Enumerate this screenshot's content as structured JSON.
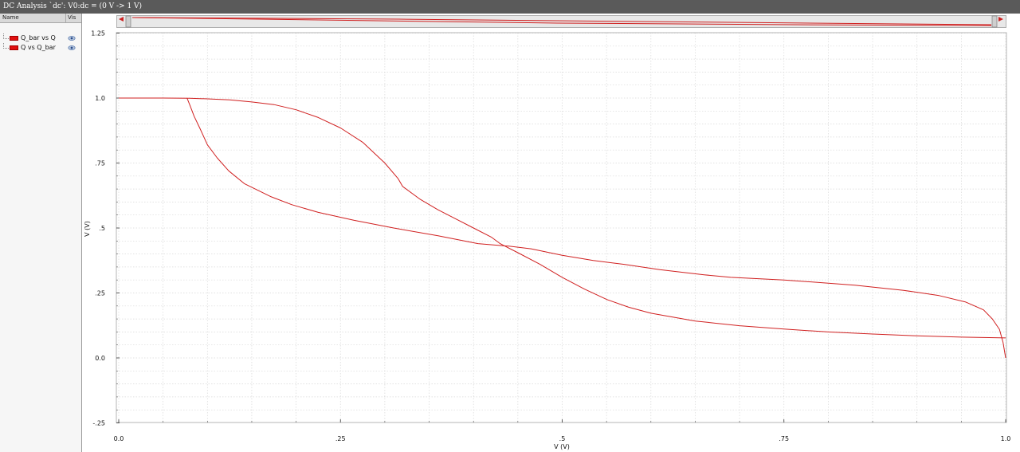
{
  "window": {
    "title": "DC Analysis `dc': V0:dc = (0 V -> 1 V)"
  },
  "legend": {
    "header_name": "Name",
    "header_vis": "Vis",
    "items": [
      {
        "label": "Q_bar vs Q",
        "color": "#e01010",
        "visible_icon": "eye-icon"
      },
      {
        "label": "Q vs Q_bar",
        "color": "#e01010",
        "visible_icon": "eye-icon"
      }
    ]
  },
  "chart_data": {
    "type": "line",
    "xlabel": "V (V)",
    "ylabel": "V (V)",
    "xlim": [
      0,
      1
    ],
    "ylim": [
      -0.25,
      1.25
    ],
    "x_ticks": [
      {
        "value": 0,
        "label": "0.0"
      },
      {
        "value": 0.25,
        "label": ".25"
      },
      {
        "value": 0.5,
        "label": ".5"
      },
      {
        "value": 0.75,
        "label": ".75"
      },
      {
        "value": 1.0,
        "label": "1.0"
      }
    ],
    "y_ticks": [
      {
        "value": 1.25,
        "label": "1.25"
      },
      {
        "value": 1.0,
        "label": "1.0"
      },
      {
        "value": 0.75,
        "label": ".75"
      },
      {
        "value": 0.5,
        "label": ".5"
      },
      {
        "value": 0.25,
        "label": ".25"
      },
      {
        "value": 0.0,
        "label": "0.0"
      },
      {
        "value": -0.25,
        "label": "-.25"
      }
    ],
    "grid": true,
    "line_color": "#d02020",
    "series": [
      {
        "name": "Q_bar vs Q",
        "points": [
          [
            0.0,
            1.0
          ],
          [
            0.05,
            1.0
          ],
          [
            0.08,
            0.999
          ],
          [
            0.1,
            0.997
          ],
          [
            0.125,
            0.993
          ],
          [
            0.15,
            0.985
          ],
          [
            0.175,
            0.975
          ],
          [
            0.2,
            0.955
          ],
          [
            0.225,
            0.925
          ],
          [
            0.25,
            0.885
          ],
          [
            0.275,
            0.83
          ],
          [
            0.3,
            0.75
          ],
          [
            0.315,
            0.69
          ],
          [
            0.32,
            0.66
          ],
          [
            0.34,
            0.61
          ],
          [
            0.36,
            0.57
          ],
          [
            0.38,
            0.535
          ],
          [
            0.4,
            0.5
          ],
          [
            0.42,
            0.465
          ],
          [
            0.43,
            0.44
          ],
          [
            0.45,
            0.405
          ],
          [
            0.475,
            0.36
          ],
          [
            0.5,
            0.31
          ],
          [
            0.525,
            0.265
          ],
          [
            0.55,
            0.225
          ],
          [
            0.575,
            0.195
          ],
          [
            0.6,
            0.172
          ],
          [
            0.65,
            0.142
          ],
          [
            0.7,
            0.124
          ],
          [
            0.75,
            0.111
          ],
          [
            0.8,
            0.1
          ],
          [
            0.85,
            0.092
          ],
          [
            0.9,
            0.085
          ],
          [
            0.95,
            0.08
          ],
          [
            1.0,
            0.077
          ]
        ]
      },
      {
        "name": "Q vs Q_bar",
        "points": [
          [
            0.077,
            1.0
          ],
          [
            0.08,
            0.975
          ],
          [
            0.085,
            0.93
          ],
          [
            0.092,
            0.88
          ],
          [
            0.1,
            0.82
          ],
          [
            0.111,
            0.77
          ],
          [
            0.124,
            0.72
          ],
          [
            0.142,
            0.67
          ],
          [
            0.172,
            0.62
          ],
          [
            0.195,
            0.59
          ],
          [
            0.225,
            0.56
          ],
          [
            0.265,
            0.53
          ],
          [
            0.31,
            0.5
          ],
          [
            0.36,
            0.47
          ],
          [
            0.405,
            0.44
          ],
          [
            0.44,
            0.43
          ],
          [
            0.465,
            0.42
          ],
          [
            0.5,
            0.395
          ],
          [
            0.535,
            0.375
          ],
          [
            0.57,
            0.36
          ],
          [
            0.61,
            0.34
          ],
          [
            0.66,
            0.32
          ],
          [
            0.69,
            0.31
          ],
          [
            0.75,
            0.3
          ],
          [
            0.83,
            0.28
          ],
          [
            0.885,
            0.26
          ],
          [
            0.925,
            0.24
          ],
          [
            0.955,
            0.215
          ],
          [
            0.975,
            0.185
          ],
          [
            0.985,
            0.15
          ],
          [
            0.993,
            0.11
          ],
          [
            0.997,
            0.06
          ],
          [
            0.999,
            0.02
          ],
          [
            1.0,
            0.0
          ]
        ]
      }
    ]
  }
}
